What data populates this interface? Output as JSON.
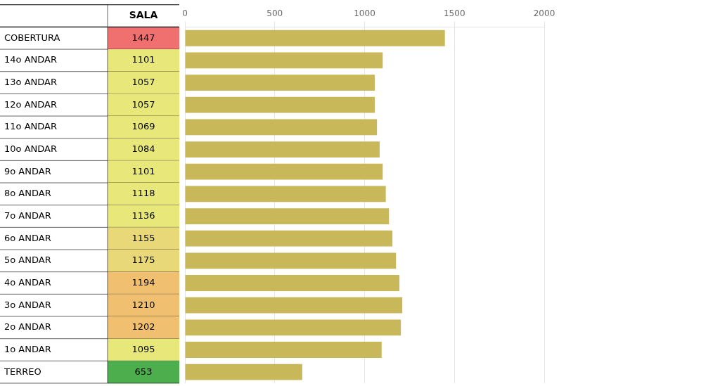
{
  "chart_data": {
    "type": "bar",
    "orientation": "horizontal",
    "categories": [
      "COBERTURA",
      "14o ANDAR",
      "13o ANDAR",
      "12o ANDAR",
      "11o ANDAR",
      "10o ANDAR",
      "9o ANDAR",
      "8o ANDAR",
      "7o ANDAR",
      "6o ANDAR",
      "5o ANDAR",
      "4o ANDAR",
      "3o ANDAR",
      "2o ANDAR",
      "1o ANDAR",
      "TERREO"
    ],
    "values": [
      1447,
      1101,
      1057,
      1057,
      1069,
      1084,
      1101,
      1118,
      1136,
      1155,
      1175,
      1194,
      1210,
      1202,
      1095,
      653
    ],
    "color": "#c8b85a",
    "xlim": [
      0,
      2000
    ],
    "xticks": [
      0,
      500,
      1000,
      1500,
      2000
    ],
    "grid": true,
    "tick_labels": "x",
    "table_header": "SALA",
    "cell_colors": [
      "#f07070",
      "#e8e87a",
      "#e8e87a",
      "#e8e87a",
      "#e8e87a",
      "#e8e87a",
      "#e8e87a",
      "#e8e87a",
      "#e8e87a",
      "#e8d878",
      "#e8d878",
      "#f0c070",
      "#f0c070",
      "#f0c070",
      "#e8e87a",
      "#4cae4c"
    ]
  }
}
